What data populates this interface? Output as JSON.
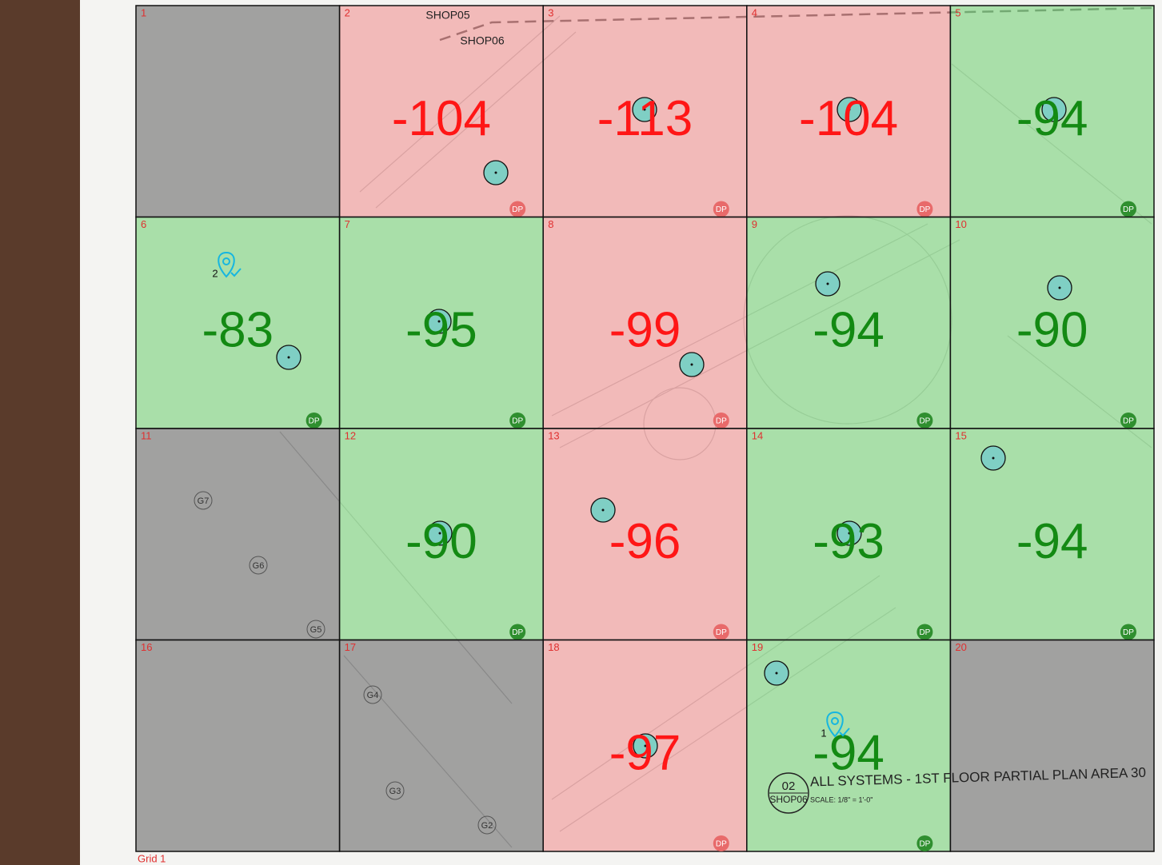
{
  "grid": {
    "label": "Grid 1",
    "badge": "DP",
    "cells": [
      {
        "number": "1",
        "tone": "gray"
      },
      {
        "number": "2",
        "tone": "red",
        "value": -104
      },
      {
        "number": "3",
        "tone": "red",
        "value": -113
      },
      {
        "number": "4",
        "tone": "red",
        "value": -104
      },
      {
        "number": "5",
        "tone": "green",
        "value": -94
      },
      {
        "number": "6",
        "tone": "green",
        "value": -83
      },
      {
        "number": "7",
        "tone": "green",
        "value": -95
      },
      {
        "number": "8",
        "tone": "red",
        "value": -99
      },
      {
        "number": "9",
        "tone": "green",
        "value": -94
      },
      {
        "number": "10",
        "tone": "green",
        "value": -90
      },
      {
        "number": "11",
        "tone": "gray"
      },
      {
        "number": "12",
        "tone": "green",
        "value": -90
      },
      {
        "number": "13",
        "tone": "red",
        "value": -96
      },
      {
        "number": "14",
        "tone": "green",
        "value": -93
      },
      {
        "number": "15",
        "tone": "green",
        "value": -94
      },
      {
        "number": "16",
        "tone": "gray"
      },
      {
        "number": "17",
        "tone": "gray"
      },
      {
        "number": "18",
        "tone": "red",
        "value": -97
      },
      {
        "number": "19",
        "tone": "green",
        "value": -94
      },
      {
        "number": "20",
        "tone": "gray"
      }
    ]
  },
  "markers": [
    "2",
    "1"
  ],
  "plan": {
    "shop_labels": [
      "SHOP05",
      "SHOP06"
    ],
    "grid_labels": [
      "G7",
      "G6",
      "G5",
      "G4",
      "G3",
      "G2"
    ],
    "title_block": {
      "number": "02",
      "sheet": "SHOP06",
      "title": "ALL SYSTEMS - 1ST FLOOR PARTIAL PLAN AREA 30",
      "scale": "SCALE: 1/8\" = 1'-0\""
    }
  }
}
